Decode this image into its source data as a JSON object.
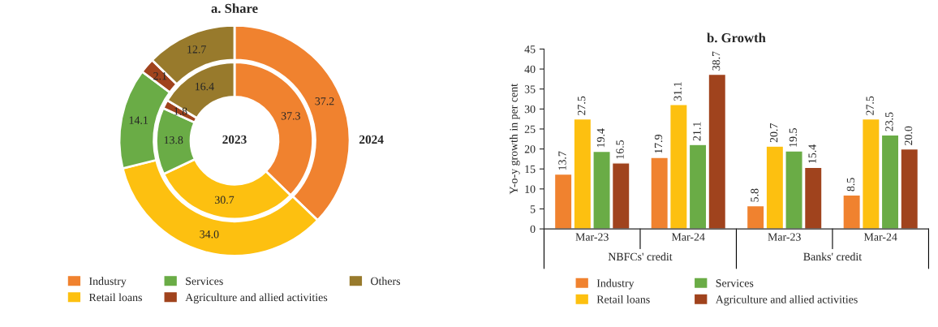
{
  "chart_data": [
    {
      "type": "donut",
      "title": "a. Share",
      "categories": [
        "Industry",
        "Retail loans",
        "Services",
        "Agriculture and allied activities",
        "Others"
      ],
      "colors": [
        "#f0822f",
        "#fdc010",
        "#6aac46",
        "#a0431d",
        "#987a2c"
      ],
      "series": [
        {
          "name": "2023",
          "values": [
            37.3,
            30.7,
            13.8,
            1.8,
            16.4
          ],
          "value_labels": [
            "37.3",
            "30.7",
            "13.8",
            "1.8",
            "16.4"
          ]
        },
        {
          "name": "2024",
          "values": [
            37.2,
            34.0,
            14.1,
            2.1,
            12.7
          ],
          "value_labels": [
            "37.2",
            "34.0",
            "14.1",
            "2.1",
            "12.7"
          ]
        }
      ],
      "legend": "bottom"
    },
    {
      "type": "bar",
      "title": "b. Growth",
      "ylabel": "Y-o-y growth in per cent",
      "categories": [
        "Mar-23",
        "Mar-24",
        "Mar-23",
        "Mar-24"
      ],
      "series": [
        {
          "name": "Industry",
          "color": "#f0822f",
          "values": [
            13.7,
            17.9,
            5.8,
            8.5
          ],
          "value_labels": [
            "13.7",
            "17.9",
            "5.8",
            "8.5"
          ]
        },
        {
          "name": "Retail loans",
          "color": "#fdc010",
          "values": [
            27.5,
            31.1,
            20.7,
            27.5
          ],
          "value_labels": [
            "27.5",
            "31.1",
            "20.7",
            "27.5"
          ]
        },
        {
          "name": "Services",
          "color": "#6aac46",
          "values": [
            19.4,
            21.1,
            19.5,
            23.5
          ],
          "value_labels": [
            "19.4",
            "21.1",
            "19.5",
            "23.5"
          ]
        },
        {
          "name": "Agriculture and allied activities",
          "color": "#a0431d",
          "values": [
            16.5,
            38.7,
            15.4,
            20.0
          ],
          "value_labels": [
            "16.5",
            "38.7",
            "15.4",
            "20.0"
          ]
        }
      ],
      "ylim": [
        0,
        45
      ],
      "yticks": [
        0,
        5,
        10,
        15,
        20,
        25,
        30,
        35,
        40,
        45
      ],
      "annotations": [
        "NBFCs' credit",
        "Banks' credit"
      ],
      "legend": "bottom",
      "grid": false
    }
  ]
}
